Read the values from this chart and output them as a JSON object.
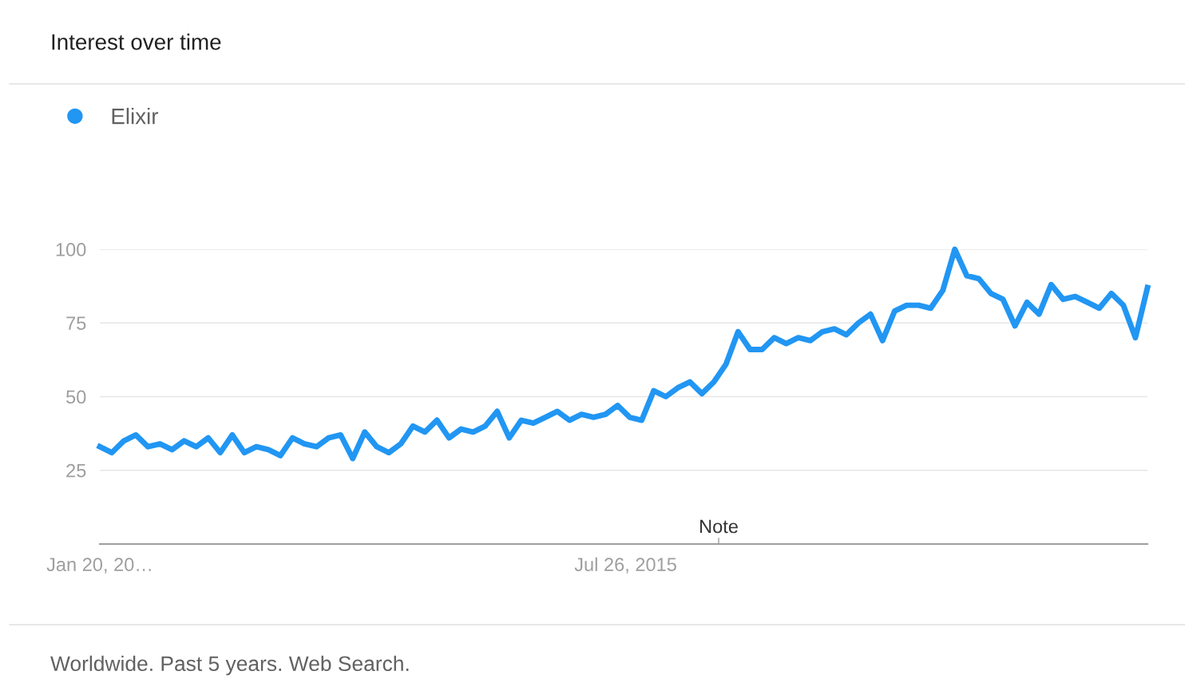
{
  "chart_data": {
    "type": "line",
    "title": "Interest over time",
    "x": [
      "2013-01-20",
      "2013-02-10",
      "2013-03-03",
      "2013-03-24",
      "2013-04-14",
      "2013-05-05",
      "2013-05-26",
      "2013-06-16",
      "2013-07-07",
      "2013-07-28",
      "2013-08-18",
      "2013-09-08",
      "2013-09-29",
      "2013-10-20",
      "2013-11-10",
      "2013-12-01",
      "2013-12-22",
      "2014-01-12",
      "2014-02-02",
      "2014-02-23",
      "2014-03-16",
      "2014-04-06",
      "2014-04-27",
      "2014-05-18",
      "2014-06-08",
      "2014-06-29",
      "2014-07-20",
      "2014-08-10",
      "2014-08-31",
      "2014-09-21",
      "2014-10-12",
      "2014-11-02",
      "2014-11-23",
      "2014-12-14",
      "2015-01-04",
      "2015-01-25",
      "2015-02-15",
      "2015-03-08",
      "2015-03-29",
      "2015-04-19",
      "2015-05-10",
      "2015-05-31",
      "2015-06-21",
      "2015-07-12",
      "2015-08-02",
      "2015-08-23",
      "2015-09-13",
      "2015-10-04",
      "2015-10-25",
      "2015-11-15",
      "2015-12-06",
      "2015-12-27",
      "2016-01-17",
      "2016-02-07",
      "2016-02-28",
      "2016-03-20",
      "2016-04-10",
      "2016-05-01",
      "2016-05-22",
      "2016-06-12",
      "2016-07-03",
      "2016-07-24",
      "2016-08-14",
      "2016-09-04",
      "2016-09-25",
      "2016-10-16",
      "2016-11-06",
      "2016-11-27",
      "2016-12-18",
      "2017-01-08",
      "2017-01-29",
      "2017-02-19",
      "2017-03-12",
      "2017-04-02",
      "2017-04-23",
      "2017-05-14",
      "2017-06-04",
      "2017-06-25",
      "2017-07-16",
      "2017-08-06",
      "2017-08-27",
      "2017-09-17",
      "2017-10-08",
      "2017-10-29",
      "2017-11-19",
      "2017-12-10",
      "2017-12-31",
      "2018-01-21"
    ],
    "xlim": [
      "2013-01-20",
      "2018-01-21"
    ],
    "xticks": [
      {
        "value": "2013-01-20",
        "label": "Jan 20, 20…"
      },
      {
        "value": "2015-07-26",
        "label": "Jul 26, 2015"
      }
    ],
    "ylim": [
      0,
      100
    ],
    "yticks": [
      25,
      50,
      75,
      100
    ],
    "series": [
      {
        "name": "Elixir",
        "color": "#2196f3",
        "values": [
          33,
          31,
          35,
          37,
          33,
          34,
          32,
          35,
          33,
          36,
          31,
          37,
          31,
          33,
          32,
          30,
          36,
          34,
          33,
          36,
          37,
          29,
          38,
          33,
          31,
          34,
          40,
          38,
          42,
          36,
          39,
          38,
          40,
          45,
          36,
          42,
          41,
          43,
          45,
          42,
          44,
          43,
          44,
          47,
          43,
          42,
          52,
          50,
          53,
          55,
          51,
          55,
          61,
          72,
          66,
          66,
          70,
          68,
          70,
          69,
          72,
          73,
          71,
          75,
          78,
          69,
          79,
          81,
          81,
          80,
          86,
          100,
          91,
          90,
          85,
          83,
          74,
          82,
          78,
          88,
          83,
          84,
          82,
          80,
          85,
          81,
          70,
          87
        ]
      }
    ],
    "grid": "y",
    "legend": "top left",
    "marker": "none",
    "line_style": "solid",
    "annotations": [
      "Note",
      "Worldwide. Past 5 years. Web Search."
    ]
  }
}
